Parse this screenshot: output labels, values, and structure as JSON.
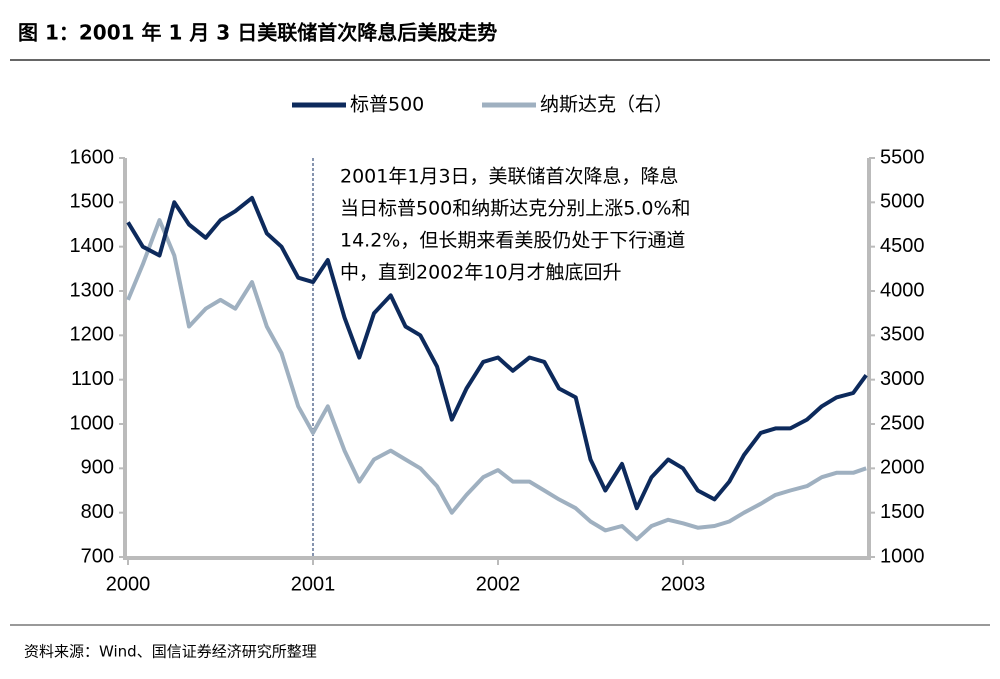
{
  "title": "图 1：2001 年 1 月 3 日美联储首次降息后美股走势",
  "source": "资料来源：Wind、国信证券经济研究所整理",
  "chart_data": {
    "type": "line",
    "annotation": [
      "2001年1月3日，美联储首次降息，降息",
      "当日标普500和纳斯达克分别上涨5.0%和",
      "14.2%，但长期来看美股仍处于下行通道",
      "中，直到2002年10月才触底回升"
    ],
    "vline": 2001,
    "legend": "top",
    "x": [
      2000.0,
      2000.08,
      2000.17,
      2000.25,
      2000.33,
      2000.42,
      2000.5,
      2000.58,
      2000.67,
      2000.75,
      2000.83,
      2000.92,
      2001.0,
      2001.08,
      2001.17,
      2001.25,
      2001.33,
      2001.42,
      2001.5,
      2001.58,
      2001.67,
      2001.75,
      2001.83,
      2001.92,
      2002.0,
      2002.08,
      2002.17,
      2002.25,
      2002.33,
      2002.42,
      2002.5,
      2002.58,
      2002.67,
      2002.75,
      2002.83,
      2002.92,
      2003.0,
      2003.08,
      2003.17,
      2003.25,
      2003.33,
      2003.42,
      2003.5,
      2003.58,
      2003.67,
      2003.75,
      2003.83,
      2003.92,
      2003.99
    ],
    "xlim": [
      2000,
      2004
    ],
    "xticks": [
      2000,
      2001,
      2002,
      2003
    ],
    "ylim": [
      700,
      1600
    ],
    "yticks": [
      700,
      800,
      900,
      1000,
      1100,
      1200,
      1300,
      1400,
      1500,
      1600
    ],
    "y2lim": [
      1000,
      5500
    ],
    "y2ticks": [
      1000,
      1500,
      2000,
      2500,
      3000,
      3500,
      4000,
      4500,
      5000,
      5500
    ],
    "series": [
      {
        "name": "标普500",
        "color": "#0d2a5c",
        "values": [
          1455,
          1400,
          1380,
          1500,
          1450,
          1420,
          1460,
          1480,
          1510,
          1430,
          1400,
          1330,
          1320,
          1370,
          1240,
          1150,
          1250,
          1290,
          1220,
          1200,
          1130,
          1010,
          1080,
          1140,
          1150,
          1120,
          1150,
          1140,
          1080,
          1060,
          920,
          850,
          910,
          810,
          880,
          920,
          900,
          850,
          830,
          870,
          930,
          980,
          990,
          990,
          1010,
          1040,
          1060,
          1070,
          1110
        ]
      },
      {
        "name": "纳斯达克（右）",
        "color": "#9fb0c0",
        "axis": "y2",
        "values": [
          3900,
          4300,
          4800,
          4400,
          3600,
          3800,
          3900,
          3800,
          4100,
          3600,
          3300,
          2700,
          2400,
          2700,
          2200,
          1850,
          2100,
          2200,
          2100,
          2000,
          1800,
          1500,
          1700,
          1900,
          1980,
          1850,
          1850,
          1750,
          1650,
          1550,
          1400,
          1300,
          1350,
          1200,
          1350,
          1420,
          1380,
          1330,
          1350,
          1400,
          1500,
          1600,
          1700,
          1750,
          1800,
          1900,
          1950,
          1950,
          2000
        ]
      }
    ]
  }
}
